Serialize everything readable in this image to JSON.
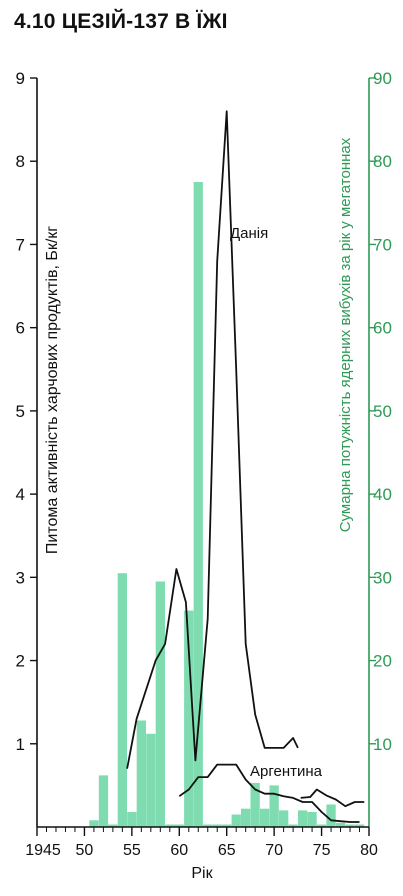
{
  "title": "4.10 ЦЕЗІЙ-137 В ЇЖІ",
  "chart_data": {
    "type": "bar+line",
    "xlabel": "Рік",
    "ylabel_left": "Питома активність харчових продуктів, Бк/кг",
    "ylabel_right": "Сумарна потужність ядерних вибухів за рік у мегатоннах",
    "xlim": [
      1945,
      1980
    ],
    "ylim_left": [
      0,
      9
    ],
    "ylim_right": [
      0,
      90
    ],
    "x_tick_values": [
      1945,
      1950,
      1955,
      1960,
      1965,
      1970,
      1975,
      1980
    ],
    "x_tick_labels": [
      "1945",
      "50",
      "55",
      "60",
      "65",
      "70",
      "75",
      "80"
    ],
    "y_left_ticks": [
      "1",
      "2",
      "3",
      "4",
      "5",
      "6",
      "7",
      "8",
      "9"
    ],
    "y_right_ticks": [
      "10",
      "20",
      "30",
      "40",
      "50",
      "60",
      "70",
      "80",
      "90"
    ],
    "bars": {
      "name": "Сумарна потужність ядерних вибухів",
      "color": "#7fdcb0",
      "axis": "right",
      "years": [
        1951,
        1952,
        1953,
        1954,
        1955,
        1956,
        1957,
        1958,
        1959,
        1960,
        1961,
        1962,
        1963,
        1964,
        1965,
        1966,
        1967,
        1968,
        1969,
        1970,
        1971,
        1972,
        1973,
        1974,
        1975,
        1976,
        1977,
        1978,
        1979
      ],
      "values": [
        0.8,
        6.2,
        0.3,
        30.5,
        1.8,
        12.8,
        11.2,
        29.5,
        0.3,
        0.3,
        26.0,
        77.5,
        0.3,
        0.3,
        0.3,
        1.5,
        2.2,
        5.3,
        2.2,
        5.0,
        2.0,
        0.3,
        2.0,
        1.8,
        0.3,
        2.7,
        0.5,
        0.3,
        0.3
      ]
    },
    "series": [
      {
        "name": "Данія",
        "color": "#111111",
        "axis": "left",
        "points": [
          [
            54.5,
            0.7
          ],
          [
            55.5,
            1.3
          ],
          [
            57.5,
            2.0
          ],
          [
            58.5,
            2.2
          ],
          [
            59.7,
            3.1
          ],
          [
            60.7,
            2.7
          ],
          [
            61.7,
            0.8
          ],
          [
            63,
            2.5
          ],
          [
            64,
            6.8
          ],
          [
            65,
            8.6
          ],
          [
            66,
            5.5
          ],
          [
            67,
            2.2
          ],
          [
            68,
            1.35
          ],
          [
            69,
            0.95
          ],
          [
            70,
            0.95
          ],
          [
            71,
            0.95
          ],
          [
            72,
            1.07
          ],
          [
            72.5,
            0.95
          ]
        ]
      },
      {
        "name": "Аргентина",
        "color": "#111111",
        "axis": "left",
        "points": [
          [
            60,
            0.37
          ],
          [
            61,
            0.45
          ],
          [
            62,
            0.6
          ],
          [
            63,
            0.6
          ],
          [
            64,
            0.75
          ],
          [
            65,
            0.75
          ],
          [
            66,
            0.75
          ],
          [
            67,
            0.57
          ],
          [
            68,
            0.45
          ],
          [
            69,
            0.4
          ],
          [
            70,
            0.4
          ],
          [
            71,
            0.37
          ],
          [
            72,
            0.35
          ],
          [
            73,
            0.3
          ],
          [
            74,
            0.3
          ],
          [
            75,
            0.18
          ],
          [
            76,
            0.08
          ],
          [
            77,
            0.07
          ],
          [
            78,
            0.06
          ],
          [
            79,
            0.06
          ]
        ]
      },
      {
        "name": "",
        "color": "#111111",
        "axis": "left",
        "points": [
          [
            72.8,
            0.35
          ],
          [
            73.8,
            0.36
          ],
          [
            74.5,
            0.45
          ],
          [
            75.5,
            0.38
          ],
          [
            76.5,
            0.33
          ],
          [
            77.5,
            0.25
          ],
          [
            78.5,
            0.3
          ],
          [
            79.5,
            0.3
          ]
        ]
      }
    ],
    "annotations": [
      "Данія",
      "Аргентина"
    ],
    "grid": false,
    "legend": "none"
  }
}
